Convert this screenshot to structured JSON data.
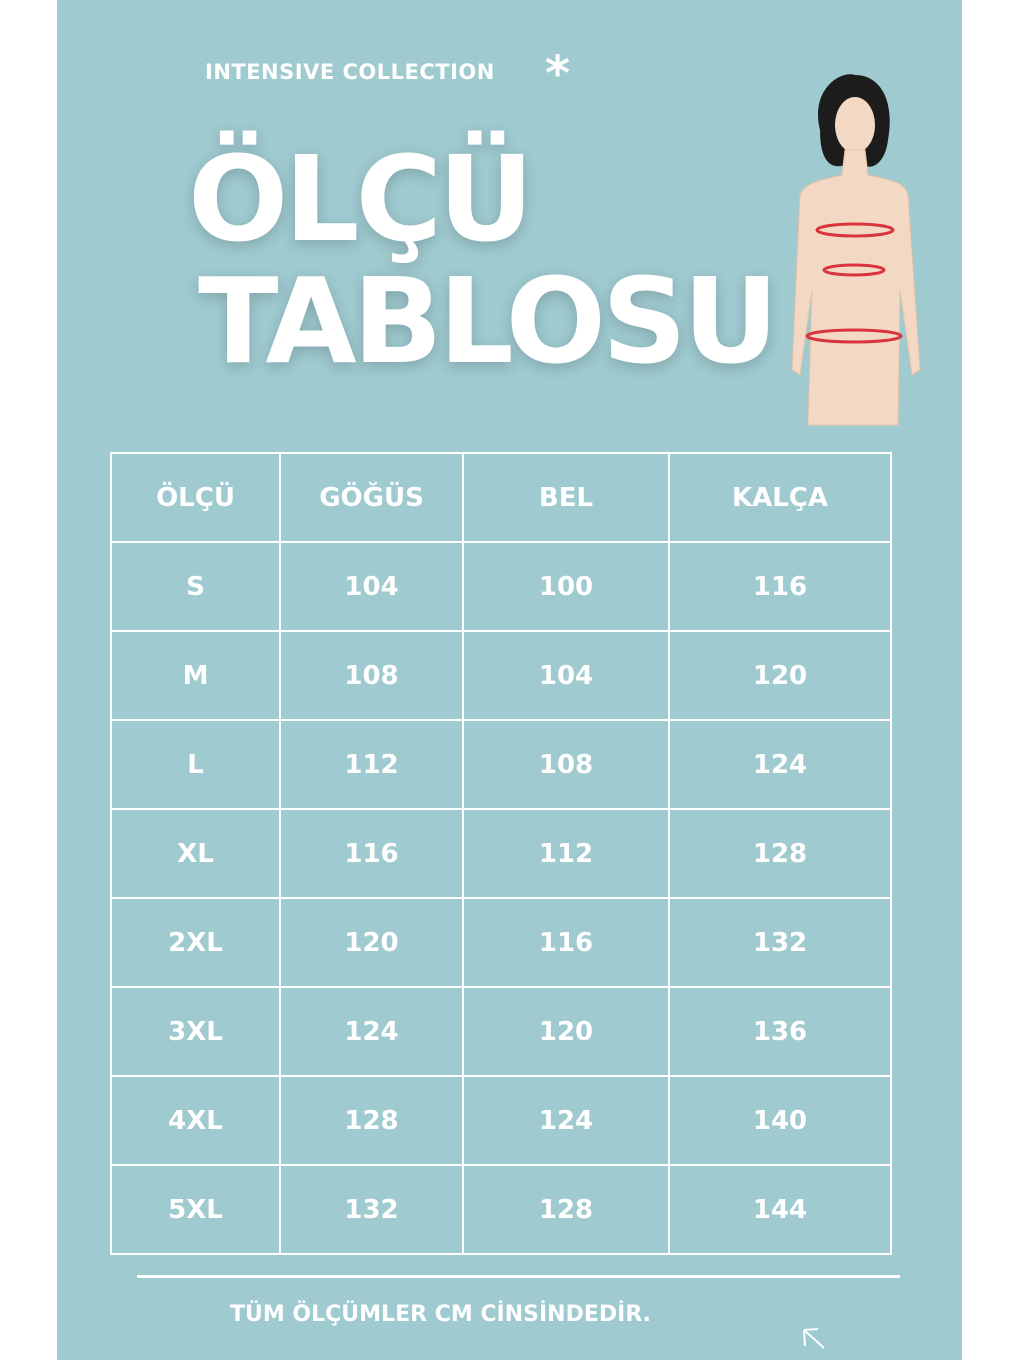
{
  "header": {
    "collection": "INTENSIVE COLLECTION",
    "title_line1": "ÖLÇÜ",
    "title_line2": "TABLOSU"
  },
  "colors": {
    "background": "#9ecad0",
    "text": "#ffffff",
    "measure_line": "#d9333c"
  },
  "table": {
    "headers": [
      "ÖLÇÜ",
      "GÖĞÜS",
      "BEL",
      "KALÇA"
    ],
    "rows": [
      [
        "S",
        "104",
        "100",
        "116"
      ],
      [
        "M",
        "108",
        "104",
        "120"
      ],
      [
        "L",
        "112",
        "108",
        "124"
      ],
      [
        "XL",
        "116",
        "112",
        "128"
      ],
      [
        "2XL",
        "120",
        "116",
        "132"
      ],
      [
        "3XL",
        "124",
        "120",
        "136"
      ],
      [
        "4XL",
        "128",
        "124",
        "140"
      ],
      [
        "5XL",
        "132",
        "128",
        "144"
      ]
    ]
  },
  "footer": {
    "note": "TÜM ÖLÇÜMLER CM CİNSİNDEDİR."
  }
}
